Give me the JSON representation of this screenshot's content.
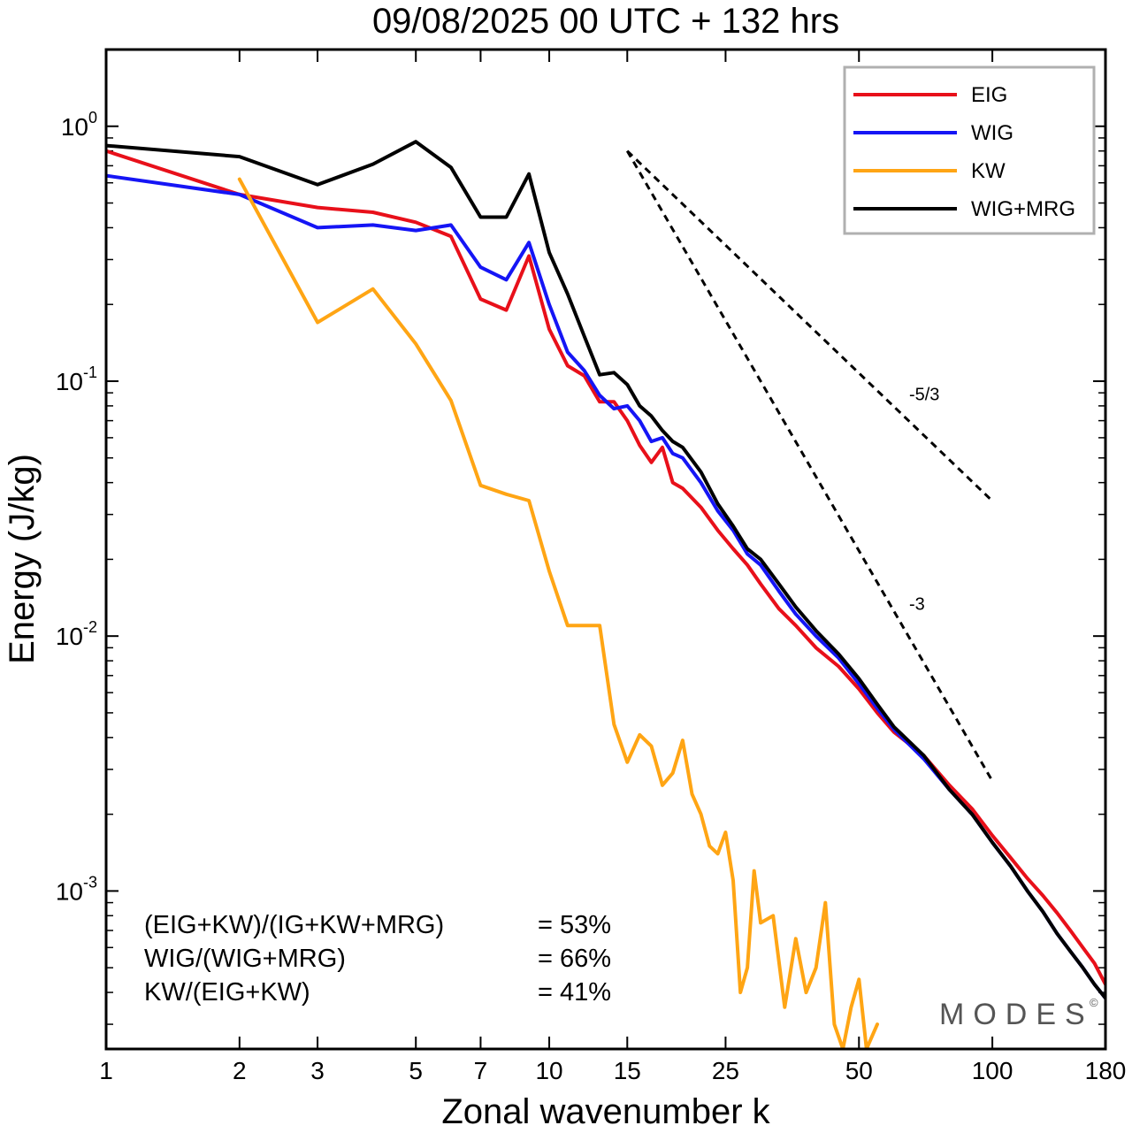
{
  "chart_data": {
    "type": "line",
    "title": "09/08/2025  00 UTC  + 132 hrs",
    "xlabel": "Zonal wavenumber k",
    "ylabel": "Energy (J/kg)",
    "xscale": "log",
    "yscale": "log",
    "xlim": [
      1,
      180
    ],
    "ylim": [
      0.00024,
      2.0
    ],
    "xticks": [
      1,
      2,
      3,
      5,
      7,
      10,
      15,
      25,
      50,
      100,
      180
    ],
    "xtick_labels": [
      "1",
      "2",
      "3",
      "5",
      "7",
      "10",
      "15",
      "25",
      "50",
      "100",
      "180"
    ],
    "yticks": [
      {
        "value": 1,
        "base": "10",
        "exp": "0"
      },
      {
        "value": 0.1,
        "base": "10",
        "exp": "-1"
      },
      {
        "value": 0.01,
        "base": "10",
        "exp": "-2"
      },
      {
        "value": 0.001,
        "base": "10",
        "exp": "-3"
      }
    ],
    "legend_position": "top-right",
    "series": [
      {
        "name": "EIG",
        "color": "#e8101a",
        "x": [
          1,
          2,
          3,
          4,
          5,
          6,
          7,
          8,
          9,
          10,
          11,
          12,
          13,
          14,
          15,
          16,
          17,
          18,
          19,
          20,
          22,
          24,
          26,
          28,
          30,
          33,
          36,
          40,
          45,
          50,
          55,
          60,
          70,
          80,
          90,
          100,
          110,
          120,
          130,
          140,
          150,
          160,
          170,
          180
        ],
        "y": [
          0.8,
          0.54,
          0.48,
          0.46,
          0.42,
          0.37,
          0.21,
          0.19,
          0.31,
          0.16,
          0.115,
          0.105,
          0.083,
          0.083,
          0.07,
          0.056,
          0.048,
          0.055,
          0.04,
          0.038,
          0.032,
          0.026,
          0.022,
          0.019,
          0.016,
          0.0128,
          0.011,
          0.009,
          0.0076,
          0.0062,
          0.005,
          0.0042,
          0.0034,
          0.0026,
          0.0021,
          0.00165,
          0.00135,
          0.00112,
          0.00096,
          0.00082,
          0.0007,
          0.0006,
          0.00052,
          0.00043
        ]
      },
      {
        "name": "WIG",
        "color": "#1515f5",
        "x": [
          1,
          2,
          3,
          4,
          5,
          6,
          7,
          8,
          9,
          10,
          11,
          12,
          13,
          14,
          15,
          16,
          17,
          18,
          19,
          20,
          22,
          24,
          26,
          28,
          30,
          33,
          36,
          40,
          45,
          50,
          55,
          60,
          70,
          80,
          90,
          100,
          110,
          120,
          130,
          140,
          150,
          160,
          170,
          180
        ],
        "y": [
          0.64,
          0.54,
          0.4,
          0.41,
          0.39,
          0.41,
          0.28,
          0.25,
          0.35,
          0.2,
          0.13,
          0.11,
          0.088,
          0.078,
          0.08,
          0.07,
          0.058,
          0.06,
          0.052,
          0.05,
          0.04,
          0.031,
          0.026,
          0.021,
          0.019,
          0.015,
          0.0122,
          0.01,
          0.0082,
          0.0065,
          0.0052,
          0.0043,
          0.0033,
          0.0025,
          0.002,
          0.00155,
          0.00125,
          0.001,
          0.00083,
          0.00068,
          0.00058,
          0.0005,
          0.00043,
          0.00038
        ]
      },
      {
        "name": "KW",
        "color": "#ffa514",
        "x": [
          2,
          3,
          4,
          5,
          6,
          7,
          8,
          9,
          10,
          11,
          12,
          13,
          14,
          15,
          16,
          17,
          18,
          19,
          20,
          21,
          22,
          23,
          24,
          25,
          26,
          27,
          28,
          29,
          30,
          32,
          34,
          36,
          38,
          40,
          42,
          44,
          46,
          48,
          50,
          52,
          55
        ],
        "y": [
          0.62,
          0.17,
          0.23,
          0.14,
          0.084,
          0.039,
          0.036,
          0.034,
          0.018,
          0.011,
          0.011,
          0.011,
          0.0045,
          0.0032,
          0.0041,
          0.0037,
          0.0026,
          0.0029,
          0.0039,
          0.0024,
          0.002,
          0.0015,
          0.0014,
          0.0017,
          0.0011,
          0.0004,
          0.0005,
          0.0012,
          0.00075,
          0.0008,
          0.00035,
          0.00065,
          0.0004,
          0.0005,
          0.0009,
          0.0003,
          0.00024,
          0.00035,
          0.00045,
          0.00024,
          0.0003
        ]
      },
      {
        "name": "WIG+MRG",
        "color": "#000000",
        "x": [
          1,
          2,
          3,
          4,
          5,
          6,
          7,
          8,
          9,
          10,
          11,
          12,
          13,
          14,
          15,
          16,
          17,
          18,
          19,
          20,
          22,
          24,
          26,
          28,
          30,
          33,
          36,
          40,
          45,
          50,
          55,
          60,
          70,
          80,
          90,
          100,
          110,
          120,
          130,
          140,
          150,
          160,
          170,
          180
        ],
        "y": [
          0.84,
          0.76,
          0.59,
          0.71,
          0.87,
          0.69,
          0.44,
          0.44,
          0.65,
          0.32,
          0.22,
          0.15,
          0.106,
          0.108,
          0.097,
          0.08,
          0.073,
          0.064,
          0.058,
          0.055,
          0.044,
          0.033,
          0.027,
          0.022,
          0.02,
          0.016,
          0.013,
          0.0105,
          0.0085,
          0.0068,
          0.0054,
          0.0044,
          0.0034,
          0.0025,
          0.002,
          0.00155,
          0.00125,
          0.001,
          0.00083,
          0.00068,
          0.00058,
          0.0005,
          0.00043,
          0.00038
        ]
      }
    ],
    "reference_slopes": [
      {
        "label": "-5/3",
        "k_start": 15,
        "k_end": 100,
        "e_start": 0.8
      },
      {
        "label": "-3",
        "k_start": 15,
        "k_end": 100,
        "e_start": 0.8
      }
    ],
    "annotations": [
      {
        "text": "(EIG+KW)/(IG+KW+MRG)",
        "value": "= 53%"
      },
      {
        "text": "WIG/(WIG+MRG)",
        "value": "= 66%"
      },
      {
        "text": "KW/(EIG+KW)",
        "value": "= 41%"
      }
    ],
    "brand": "MODES",
    "brand_mark": "©"
  }
}
